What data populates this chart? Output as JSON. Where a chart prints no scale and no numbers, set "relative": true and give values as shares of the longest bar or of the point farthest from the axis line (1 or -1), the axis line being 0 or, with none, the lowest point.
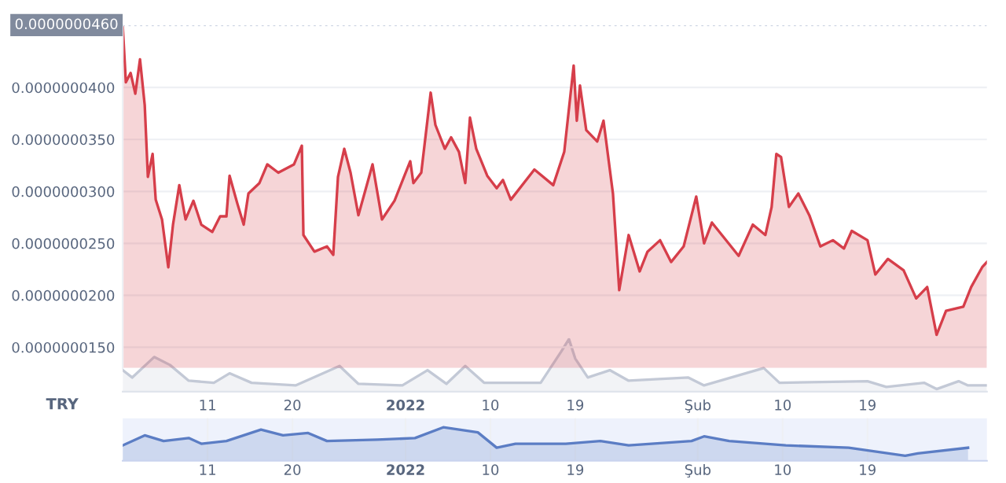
{
  "chart_data": [
    {
      "type": "area",
      "x": [
        "2021-12-02T00:00",
        "2021-12-02T08:00",
        "2021-12-02T20:00",
        "2021-12-03T08:00",
        "2021-12-03T20:00",
        "2021-12-04T08:00",
        "2021-12-04T16:00",
        "2021-12-05T04:00",
        "2021-12-05T12:00",
        "2021-12-06T04:00",
        "2021-12-06T20:00",
        "2021-12-07T08:00",
        "2021-12-08T00:00",
        "2021-12-08T16:00",
        "2021-12-09T12:00",
        "2021-12-10T08:00",
        "2021-12-11T12:00",
        "2021-12-12T08:00",
        "2021-12-13T00:00",
        "2021-12-13T08:00",
        "2021-12-14T04:00",
        "2021-12-14T20:00",
        "2021-12-15T08:00",
        "2021-12-16T12:00",
        "2021-12-17T08:00",
        "2021-12-18T12:00",
        "2021-12-20T04:00",
        "2021-12-21T00:00",
        "2021-12-21T04:00",
        "2021-12-22T08:00",
        "2021-12-23T16:00",
        "2021-12-24T08:00",
        "2021-12-24T20:00",
        "2021-12-25T12:00",
        "2021-12-26T04:00",
        "2021-12-27T00:00",
        "2021-12-28T12:00",
        "2021-12-29T12:00",
        "2021-12-30T20:00",
        "2021-12-31T20:00",
        "2022-01-01T12:00",
        "2022-01-01T20:00",
        "2022-01-02T16:00",
        "2022-01-03T16:00",
        "2022-01-04T04:00",
        "2022-01-05T04:00",
        "2022-01-05T20:00",
        "2022-01-06T16:00",
        "2022-01-07T08:00",
        "2022-01-07T20:00",
        "2022-01-08T12:00",
        "2022-01-09T16:00",
        "2022-01-10T16:00",
        "2022-01-11T08:00",
        "2022-01-12T04:00",
        "2022-01-14T16:00",
        "2022-01-16T16:00",
        "2022-01-17T20:00",
        "2022-01-18T20:00",
        "2022-01-19T04:00",
        "2022-01-19T12:00",
        "2022-01-20T04:00",
        "2022-01-21T08:00",
        "2022-01-22T00:00",
        "2022-01-23T00:00",
        "2022-01-23T16:00",
        "2022-01-24T16:00",
        "2022-01-25T20:00",
        "2022-01-26T16:00",
        "2022-01-28T00:00",
        "2022-01-29T04:00",
        "2022-01-30T12:00",
        "2022-01-31T20:00",
        "2022-02-01T16:00",
        "2022-02-02T12:00",
        "2022-02-05T08:00",
        "2022-02-06T20:00",
        "2022-02-08T04:00",
        "2022-02-08T20:00",
        "2022-02-09T08:00",
        "2022-02-09T20:00",
        "2022-02-10T16:00",
        "2022-02-11T16:00",
        "2022-02-12T20:00",
        "2022-02-14T00:00",
        "2022-02-15T08:00",
        "2022-02-16T12:00",
        "2022-02-17T08:00",
        "2022-02-19T00:00",
        "2022-02-19T20:00",
        "2022-02-21T04:00",
        "2022-02-22T20:00",
        "2022-02-24T04:00",
        "2022-02-25T08:00",
        "2022-02-26T08:00",
        "2022-02-27T08:00",
        "2022-03-01T04:00",
        "2022-03-02T00:00",
        "2022-03-03T04:00",
        "2022-03-03T16:00"
      ],
      "series": [
        {
          "color": "#d63e4a",
          "values": [
            4.59e-08,
            4.05e-08,
            4.14e-08,
            3.94e-08,
            4.27e-08,
            3.83e-08,
            3.14e-08,
            3.36e-08,
            2.92e-08,
            2.73e-08,
            2.27e-08,
            2.68e-08,
            3.06e-08,
            2.73e-08,
            2.91e-08,
            2.68e-08,
            2.61e-08,
            2.76e-08,
            2.76e-08,
            3.15e-08,
            2.88e-08,
            2.68e-08,
            2.98e-08,
            3.08e-08,
            3.26e-08,
            3.18e-08,
            3.26e-08,
            3.44e-08,
            2.58e-08,
            2.42e-08,
            2.47e-08,
            2.39e-08,
            3.14e-08,
            3.41e-08,
            3.18e-08,
            2.77e-08,
            3.26e-08,
            2.73e-08,
            2.91e-08,
            3.14e-08,
            3.29e-08,
            3.08e-08,
            3.18e-08,
            3.95e-08,
            3.64e-08,
            3.41e-08,
            3.52e-08,
            3.38e-08,
            3.08e-08,
            3.71e-08,
            3.41e-08,
            3.15e-08,
            3.03e-08,
            3.11e-08,
            2.92e-08,
            3.21e-08,
            3.06e-08,
            3.38e-08,
            4.21e-08,
            3.68e-08,
            4.02e-08,
            3.59e-08,
            3.48e-08,
            3.68e-08,
            2.98e-08,
            2.05e-08,
            2.58e-08,
            2.23e-08,
            2.42e-08,
            2.53e-08,
            2.32e-08,
            2.47e-08,
            2.95e-08,
            2.5e-08,
            2.7e-08,
            2.38e-08,
            2.68e-08,
            2.58e-08,
            2.85e-08,
            3.36e-08,
            3.33e-08,
            2.85e-08,
            2.98e-08,
            2.77e-08,
            2.47e-08,
            2.53e-08,
            2.45e-08,
            2.62e-08,
            2.53e-08,
            2.2e-08,
            2.35e-08,
            2.24e-08,
            1.97e-08,
            2.08e-08,
            1.62e-08,
            1.85e-08,
            1.89e-08,
            2.08e-08,
            2.27e-08,
            2.32e-08
          ]
        }
      ],
      "xlim": [
        "2021-12-02",
        "2022-03-03T16:00"
      ],
      "ylim": [
        1.3e-08,
        4.6e-08
      ],
      "yticks": [
        {
          "value": 1.5e-08,
          "label": "0.0000000150"
        },
        {
          "value": 2e-08,
          "label": "0.0000000200"
        },
        {
          "value": 2.5e-08,
          "label": "0.0000000250"
        },
        {
          "value": 3e-08,
          "label": "0.0000000300"
        },
        {
          "value": 3.5e-08,
          "label": "0.0000000350"
        },
        {
          "value": 4e-08,
          "label": "0.0000000400"
        }
      ],
      "ref_lines": [
        {
          "axis": "y",
          "value": 4.6e-08,
          "label": "0.0000000460",
          "color": "#cfd6e4",
          "line_style": "dotted"
        }
      ],
      "grid": "y",
      "tick_labels": "y"
    },
    {
      "type": "area",
      "relative": true,
      "x": [
        "2021-12-02",
        "2021-12-03",
        "2021-12-05T08:00",
        "2021-12-07",
        "2021-12-09",
        "2021-12-11T16:00",
        "2021-12-13T08:00",
        "2021-12-15T16:00",
        "2021-12-20T08:00",
        "2021-12-25",
        "2021-12-27",
        "2021-12-31T16:00",
        "2022-01-03T08:00",
        "2022-01-05T08:00",
        "2022-01-07T08:00",
        "2022-01-09T08:00",
        "2022-01-15T08:00",
        "2022-01-17T12:00",
        "2022-01-18T08:00",
        "2022-01-19",
        "2022-01-20T08:00",
        "2022-01-22T16:00",
        "2022-01-24T16:00",
        "2022-01-31",
        "2022-02-01T16:00",
        "2022-02-08",
        "2022-02-09T16:00",
        "2022-02-19",
        "2022-02-21",
        "2022-02-25",
        "2022-02-26T08:00",
        "2022-02-28T16:00",
        "2022-03-01T16:00",
        "2022-03-03T16:00"
      ],
      "series": [
        {
          "color": "#c3c9d6",
          "values": [
            0.41,
            0.27,
            0.66,
            0.51,
            0.21,
            0.17,
            0.35,
            0.17,
            0.12,
            0.49,
            0.15,
            0.12,
            0.41,
            0.15,
            0.49,
            0.17,
            0.17,
            0.76,
            1.0,
            0.63,
            0.27,
            0.41,
            0.21,
            0.27,
            0.12,
            0.45,
            0.17,
            0.2,
            0.09,
            0.17,
            0.05,
            0.2,
            0.12,
            0.12
          ]
        }
      ],
      "xlim": [
        "2021-12-02",
        "2022-03-03T16:00"
      ],
      "xticks": [
        {
          "value": "2021-12-11",
          "label": "11"
        },
        {
          "value": "2021-12-20",
          "label": "20"
        },
        {
          "value": "2022-01-01",
          "label": "2022"
        },
        {
          "value": "2022-01-10",
          "label": "10"
        },
        {
          "value": "2022-01-19",
          "label": "19"
        },
        {
          "value": "2022-02-01",
          "label": "Şub"
        },
        {
          "value": "2022-02-10",
          "label": "10"
        },
        {
          "value": "2022-02-19",
          "label": "19"
        }
      ],
      "annotations": [
        "TRY"
      ],
      "tick_labels": "x"
    },
    {
      "type": "area",
      "relative": true,
      "x": [
        "2021-12-02",
        "2021-12-04T08:00",
        "2021-12-06T08:00",
        "2021-12-09",
        "2021-12-10T08:00",
        "2021-12-13",
        "2021-12-16T16:00",
        "2021-12-19",
        "2021-12-21T16:00",
        "2021-12-23T16:00",
        "2021-12-29",
        "2022-01-02",
        "2022-01-05",
        "2022-01-08T16:00",
        "2022-01-10T16:00",
        "2022-01-12T16:00",
        "2022-01-18",
        "2022-01-21T16:00",
        "2022-01-24T16:00",
        "2022-01-31T08:00",
        "2022-02-01T16:00",
        "2022-02-04T08:00",
        "2022-02-10T08:00",
        "2022-02-17",
        "2022-02-23",
        "2022-02-24T08:00",
        "2022-03-01T16:00"
      ],
      "series": [
        {
          "color": "#5b7dc4",
          "values": [
            0.46,
            0.76,
            0.59,
            0.68,
            0.51,
            0.59,
            0.93,
            0.76,
            0.83,
            0.59,
            0.63,
            0.68,
            1.0,
            0.85,
            0.39,
            0.51,
            0.51,
            0.59,
            0.46,
            0.59,
            0.73,
            0.59,
            0.46,
            0.39,
            0.15,
            0.22,
            0.39
          ]
        }
      ],
      "xlim": [
        "2021-12-02",
        "2022-03-03T16:00"
      ],
      "xticks": [
        {
          "value": "2021-12-11",
          "label": "11"
        },
        {
          "value": "2021-12-20",
          "label": "20"
        },
        {
          "value": "2022-01-01",
          "label": "2022"
        },
        {
          "value": "2022-01-10",
          "label": "10"
        },
        {
          "value": "2022-01-19",
          "label": "19"
        },
        {
          "value": "2022-02-01",
          "label": "Şub"
        },
        {
          "value": "2022-02-10",
          "label": "10"
        },
        {
          "value": "2022-02-19",
          "label": "19"
        }
      ],
      "grid": "x",
      "tick_labels": "x"
    }
  ]
}
